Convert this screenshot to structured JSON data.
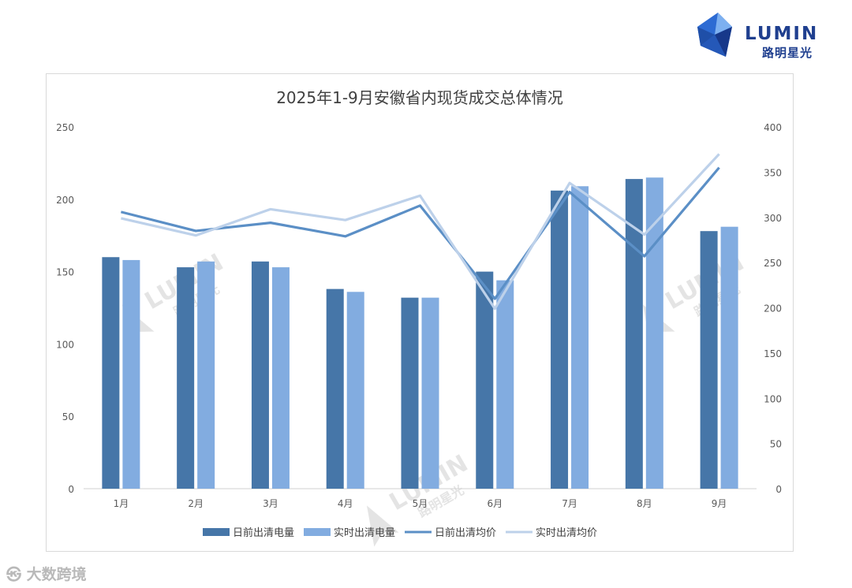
{
  "brand": {
    "name": "LUMIN",
    "cn_name": "路明星光",
    "corner_text": "大数跨境",
    "primary_color": "#1f3f8f"
  },
  "chart_data": {
    "type": "bar",
    "title": "2025年1-9月安徽省内现货成交总体情况",
    "categories": [
      "1月",
      "2月",
      "3月",
      "4月",
      "5月",
      "6月",
      "7月",
      "8月",
      "9月"
    ],
    "ylim": [
      0,
      250
    ],
    "y_ticks": [
      0,
      50,
      100,
      150,
      200,
      250
    ],
    "y2lim": [
      0,
      400
    ],
    "y2_ticks": [
      0,
      50,
      100,
      150,
      200,
      250,
      300,
      350,
      400
    ],
    "xlabel": "",
    "ylabel": "",
    "y2label": "",
    "legend_position": "bottom",
    "grid": false,
    "series": [
      {
        "name": "日前出清电量",
        "kind": "bar",
        "axis": "left",
        "color": "#4676a8",
        "values": [
          160,
          153,
          157,
          138,
          132,
          150,
          206,
          214,
          178
        ]
      },
      {
        "name": "实时出清电量",
        "kind": "bar",
        "axis": "left",
        "color": "#82ace0",
        "values": [
          158,
          157,
          153,
          136,
          132,
          144,
          209,
          215,
          181
        ]
      },
      {
        "name": "日前出清均价",
        "kind": "line",
        "axis": "right",
        "color": "#5b8fc6",
        "values": [
          306,
          285,
          294,
          279,
          313,
          210,
          328,
          257,
          355
        ]
      },
      {
        "name": "实时出清均价",
        "kind": "line",
        "axis": "right",
        "color": "#bdd1ea",
        "values": [
          299,
          280,
          309,
          297,
          324,
          199,
          338,
          281,
          370
        ]
      }
    ]
  }
}
